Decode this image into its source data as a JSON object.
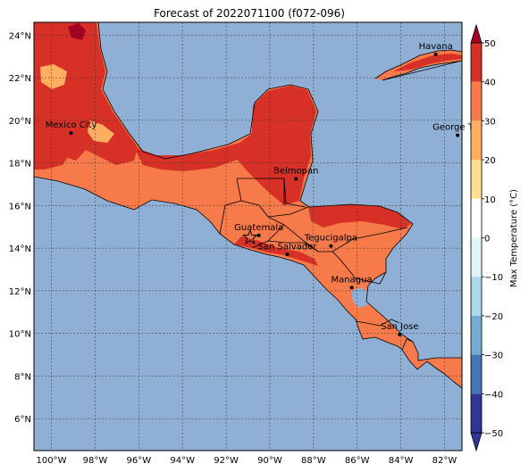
{
  "title": "Forecast of 2022071100 (f072-096)",
  "map": {
    "lon_range": [
      -100.8,
      -81.2
    ],
    "lat_range": [
      4.5,
      24.6
    ],
    "grid": true,
    "ocean_color": "#8fb0d4",
    "land_colors": {
      "c20_30": "#f67a4a",
      "c30_40": "#d73027",
      "c10_20": "#fdae61",
      "c40_50": "#a50026"
    },
    "lon_ticks": [
      {
        "value": -100,
        "label": "100°W"
      },
      {
        "value": -98,
        "label": "98°W"
      },
      {
        "value": -96,
        "label": "96°W"
      },
      {
        "value": -94,
        "label": "94°W"
      },
      {
        "value": -92,
        "label": "92°W"
      },
      {
        "value": -90,
        "label": "90°W"
      },
      {
        "value": -88,
        "label": "88°W"
      },
      {
        "value": -86,
        "label": "86°W"
      },
      {
        "value": -84,
        "label": "84°W"
      },
      {
        "value": -82,
        "label": "82°W"
      }
    ],
    "lat_ticks": [
      {
        "value": 6,
        "label": "6°N"
      },
      {
        "value": 8,
        "label": "8°N"
      },
      {
        "value": 10,
        "label": "10°N"
      },
      {
        "value": 12,
        "label": "12°N"
      },
      {
        "value": 14,
        "label": "14°N"
      },
      {
        "value": 16,
        "label": "16°N"
      },
      {
        "value": 18,
        "label": "18°N"
      },
      {
        "value": 20,
        "label": "20°N"
      },
      {
        "value": 22,
        "label": "22°N"
      },
      {
        "value": 24,
        "label": "24°N"
      }
    ],
    "cities": [
      {
        "name": "Havana",
        "lon": -82.4,
        "lat": 23.1
      },
      {
        "name": "Mexico City",
        "lon": -99.1,
        "lat": 19.4
      },
      {
        "name": "George Tov",
        "lon": -81.4,
        "lat": 19.3
      },
      {
        "name": "Belmopan",
        "lon": -88.8,
        "lat": 17.25
      },
      {
        "name": "Guatemala",
        "lon": -90.5,
        "lat": 14.6
      },
      {
        "name": "San Salvador",
        "lon": -89.2,
        "lat": 13.7
      },
      {
        "name": "Tegucigalpa",
        "lon": -87.2,
        "lat": 14.1
      },
      {
        "name": "Managua",
        "lon": -86.25,
        "lat": 12.15
      },
      {
        "name": "San Jose",
        "lon": -84.05,
        "lat": 9.95
      }
    ],
    "star_marker": {
      "lon": -90.9,
      "lat": 14.5
    }
  },
  "colorbar": {
    "label": "Max Temperature (°C)",
    "min": -50,
    "max": 50,
    "ticks": [
      "50",
      "40",
      "30",
      "20",
      "10",
      "0",
      "−10",
      "−20",
      "−30",
      "−40",
      "−50"
    ],
    "colors_top_to_bottom": [
      "#a50026",
      "#d73027",
      "#f67a4a",
      "#fdae61",
      "#fee090",
      "#ffffff",
      "#e0f3f8",
      "#abd9e9",
      "#74add1",
      "#4575b4",
      "#313695"
    ]
  }
}
